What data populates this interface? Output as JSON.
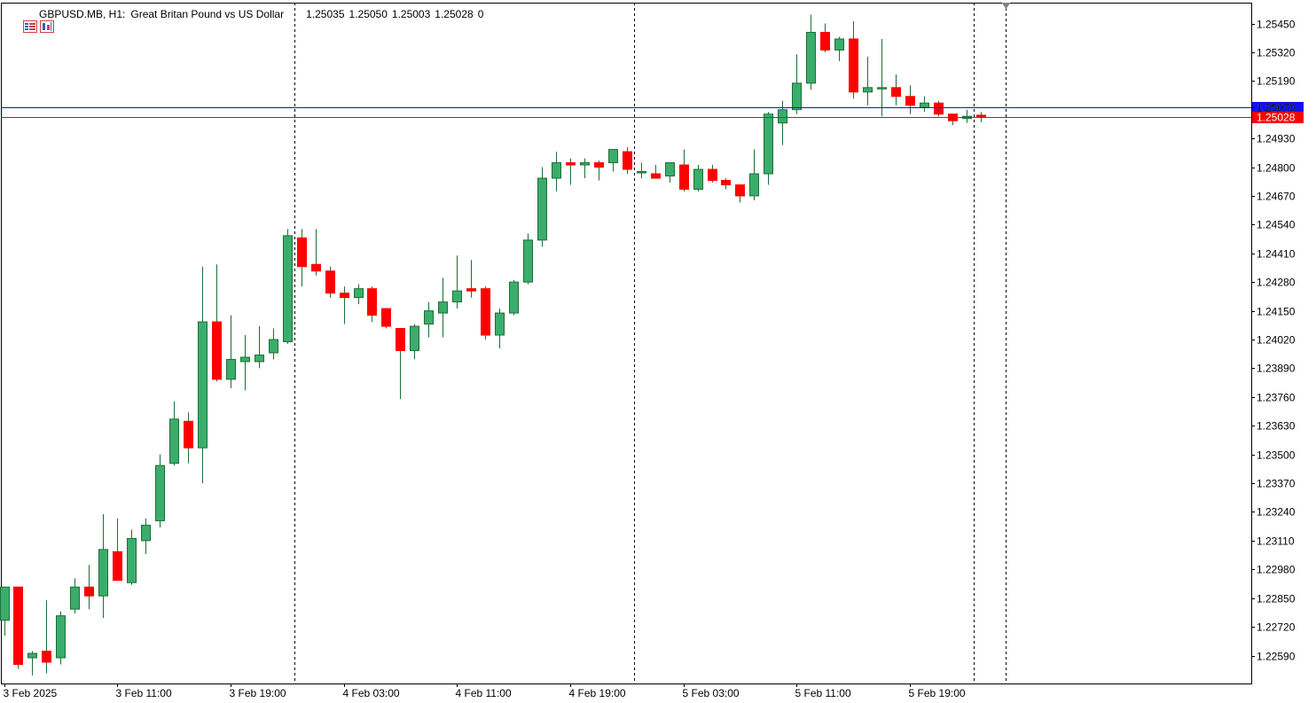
{
  "header": {
    "symbol": "GBPUSD.MB, H1:",
    "description": "Great Britan Pound vs US Dollar",
    "open": "1.25035",
    "high": "1.25050",
    "low": "1.25003",
    "close": "1.25028",
    "volume": "0",
    "icons": [
      "symbol-list-icon",
      "chart-window-icon"
    ]
  },
  "colors": {
    "bull": "#3aad6c",
    "bear": "#ff0000",
    "wick": "#1e6e35",
    "ask_line": "#1010ff",
    "bid_line": "#ff0000"
  },
  "chart_data": {
    "type": "candlestick",
    "title": "GBPUSD.MB, H1:  Great Britan Pound vs US Dollar",
    "price_axis_ticks": [
      "1.25450",
      "1.25320",
      "1.25190",
      "1.25070",
      "1.24930",
      "1.24800",
      "1.24670",
      "1.24540",
      "1.24410",
      "1.24280",
      "1.24150",
      "1.24020",
      "1.23890",
      "1.23760",
      "1.23630",
      "1.23500",
      "1.23370",
      "1.23240",
      "1.23110",
      "1.22980",
      "1.22850",
      "1.22720",
      "1.22590"
    ],
    "time_axis_labels": [
      "3 Feb 2025",
      "3 Feb 11:00",
      "3 Feb 19:00",
      "4 Feb 03:00",
      "4 Feb 11:00",
      "4 Feb 19:00",
      "5 Feb 03:00",
      "5 Feb 11:00",
      "5 Feb 19:00"
    ],
    "price_labels": [
      {
        "name": "ask",
        "value": 1.2507,
        "text": "1.25070"
      },
      {
        "name": "bid",
        "value": 1.25028,
        "text": "1.25028"
      }
    ],
    "day_separators_after_bar": [
      20.5,
      44.5,
      68.5
    ],
    "ylim": [
      1.2252,
      1.255
    ],
    "candles": [
      {
        "o": 1.2275,
        "h": 1.229,
        "l": 1.2268,
        "c": 1.229
      },
      {
        "o": 1.229,
        "h": 1.229,
        "l": 1.2253,
        "c": 1.2255
      },
      {
        "o": 1.2258,
        "h": 1.2261,
        "l": 1.225,
        "c": 1.226
      },
      {
        "o": 1.2261,
        "h": 1.2284,
        "l": 1.2251,
        "c": 1.2256
      },
      {
        "o": 1.2258,
        "h": 1.2279,
        "l": 1.2255,
        "c": 1.2277
      },
      {
        "o": 1.228,
        "h": 1.2294,
        "l": 1.2278,
        "c": 1.229
      },
      {
        "o": 1.229,
        "h": 1.23,
        "l": 1.228,
        "c": 1.2286
      },
      {
        "o": 1.2286,
        "h": 1.2323,
        "l": 1.2276,
        "c": 1.2307
      },
      {
        "o": 1.2306,
        "h": 1.2321,
        "l": 1.2295,
        "c": 1.2293
      },
      {
        "o": 1.2292,
        "h": 1.2316,
        "l": 1.2291,
        "c": 1.2312
      },
      {
        "o": 1.2311,
        "h": 1.2321,
        "l": 1.2305,
        "c": 1.2318
      },
      {
        "o": 1.232,
        "h": 1.235,
        "l": 1.2317,
        "c": 1.2345
      },
      {
        "o": 1.2346,
        "h": 1.2374,
        "l": 1.2345,
        "c": 1.2366
      },
      {
        "o": 1.2365,
        "h": 1.2369,
        "l": 1.2346,
        "c": 1.2353
      },
      {
        "o": 1.2353,
        "h": 1.2435,
        "l": 1.2337,
        "c": 1.241
      },
      {
        "o": 1.241,
        "h": 1.2436,
        "l": 1.2383,
        "c": 1.2384
      },
      {
        "o": 1.2384,
        "h": 1.2413,
        "l": 1.238,
        "c": 1.2393
      },
      {
        "o": 1.2392,
        "h": 1.2404,
        "l": 1.2379,
        "c": 1.2394
      },
      {
        "o": 1.2392,
        "h": 1.2408,
        "l": 1.2389,
        "c": 1.2395
      },
      {
        "o": 1.2396,
        "h": 1.2407,
        "l": 1.2393,
        "c": 1.2402
      },
      {
        "o": 1.2401,
        "h": 1.2452,
        "l": 1.24,
        "c": 1.2449
      },
      {
        "o": 1.2448,
        "h": 1.2452,
        "l": 1.2426,
        "c": 1.2435
      },
      {
        "o": 1.2436,
        "h": 1.2452,
        "l": 1.2431,
        "c": 1.2433
      },
      {
        "o": 1.2433,
        "h": 1.2435,
        "l": 1.2421,
        "c": 1.2423
      },
      {
        "o": 1.2423,
        "h": 1.2426,
        "l": 1.2409,
        "c": 1.2421
      },
      {
        "o": 1.2421,
        "h": 1.2427,
        "l": 1.2418,
        "c": 1.2425
      },
      {
        "o": 1.2425,
        "h": 1.2426,
        "l": 1.241,
        "c": 1.2413
      },
      {
        "o": 1.2416,
        "h": 1.2416,
        "l": 1.2407,
        "c": 1.2408
      },
      {
        "o": 1.2407,
        "h": 1.2407,
        "l": 1.2375,
        "c": 1.2397
      },
      {
        "o": 1.2397,
        "h": 1.2409,
        "l": 1.2393,
        "c": 1.2408
      },
      {
        "o": 1.2409,
        "h": 1.2419,
        "l": 1.2403,
        "c": 1.2415
      },
      {
        "o": 1.2414,
        "h": 1.243,
        "l": 1.2403,
        "c": 1.2419
      },
      {
        "o": 1.2419,
        "h": 1.244,
        "l": 1.2416,
        "c": 1.2424
      },
      {
        "o": 1.2425,
        "h": 1.2438,
        "l": 1.2421,
        "c": 1.2424
      },
      {
        "o": 1.2425,
        "h": 1.2426,
        "l": 1.2402,
        "c": 1.2404
      },
      {
        "o": 1.2404,
        "h": 1.2416,
        "l": 1.2398,
        "c": 1.2414
      },
      {
        "o": 1.2414,
        "h": 1.2429,
        "l": 1.2413,
        "c": 1.2428
      },
      {
        "o": 1.2428,
        "h": 1.245,
        "l": 1.2427,
        "c": 1.2447
      },
      {
        "o": 1.2447,
        "h": 1.248,
        "l": 1.2444,
        "c": 1.2475
      },
      {
        "o": 1.2475,
        "h": 1.2487,
        "l": 1.2469,
        "c": 1.2482
      },
      {
        "o": 1.2482,
        "h": 1.2484,
        "l": 1.2472,
        "c": 1.2481
      },
      {
        "o": 1.2481,
        "h": 1.2484,
        "l": 1.2475,
        "c": 1.2482
      },
      {
        "o": 1.2482,
        "h": 1.2483,
        "l": 1.2474,
        "c": 1.248
      },
      {
        "o": 1.2482,
        "h": 1.2488,
        "l": 1.2478,
        "c": 1.2488
      },
      {
        "o": 1.2487,
        "h": 1.2489,
        "l": 1.2477,
        "c": 1.2479
      },
      {
        "o": 1.2478,
        "h": 1.2482,
        "l": 1.2475,
        "c": 1.2478
      },
      {
        "o": 1.2477,
        "h": 1.2481,
        "l": 1.2475,
        "c": 1.2475
      },
      {
        "o": 1.2476,
        "h": 1.2482,
        "l": 1.2473,
        "c": 1.2482
      },
      {
        "o": 1.2481,
        "h": 1.2488,
        "l": 1.2469,
        "c": 1.247
      },
      {
        "o": 1.247,
        "h": 1.2481,
        "l": 1.2469,
        "c": 1.2479
      },
      {
        "o": 1.2479,
        "h": 1.2481,
        "l": 1.2473,
        "c": 1.2474
      },
      {
        "o": 1.2474,
        "h": 1.2475,
        "l": 1.247,
        "c": 1.2472
      },
      {
        "o": 1.2472,
        "h": 1.2472,
        "l": 1.2464,
        "c": 1.2467
      },
      {
        "o": 1.2467,
        "h": 1.2488,
        "l": 1.2465,
        "c": 1.2477
      },
      {
        "o": 1.2477,
        "h": 1.2505,
        "l": 1.2472,
        "c": 1.2504
      },
      {
        "o": 1.25,
        "h": 1.251,
        "l": 1.249,
        "c": 1.2506
      },
      {
        "o": 1.2506,
        "h": 1.2531,
        "l": 1.2504,
        "c": 1.2518
      },
      {
        "o": 1.2518,
        "h": 1.2549,
        "l": 1.2515,
        "c": 1.2541
      },
      {
        "o": 1.2541,
        "h": 1.2545,
        "l": 1.2532,
        "c": 1.2533
      },
      {
        "o": 1.2533,
        "h": 1.2539,
        "l": 1.2528,
        "c": 1.2538
      },
      {
        "o": 1.2538,
        "h": 1.2546,
        "l": 1.2511,
        "c": 1.2514
      },
      {
        "o": 1.2514,
        "h": 1.253,
        "l": 1.2508,
        "c": 1.2516
      },
      {
        "o": 1.2516,
        "h": 1.2538,
        "l": 1.2503,
        "c": 1.2516
      },
      {
        "o": 1.2516,
        "h": 1.2522,
        "l": 1.2508,
        "c": 1.2512
      },
      {
        "o": 1.2512,
        "h": 1.2517,
        "l": 1.2504,
        "c": 1.2508
      },
      {
        "o": 1.2507,
        "h": 1.2512,
        "l": 1.2505,
        "c": 1.2509
      },
      {
        "o": 1.2509,
        "h": 1.251,
        "l": 1.2503,
        "c": 1.2504
      },
      {
        "o": 1.2504,
        "h": 1.2504,
        "l": 1.2499,
        "c": 1.2501
      },
      {
        "o": 1.2502,
        "h": 1.2506,
        "l": 1.25,
        "c": 1.2503
      },
      {
        "o": 1.25035,
        "h": 1.2505,
        "l": 1.25003,
        "c": 1.25028
      }
    ]
  }
}
